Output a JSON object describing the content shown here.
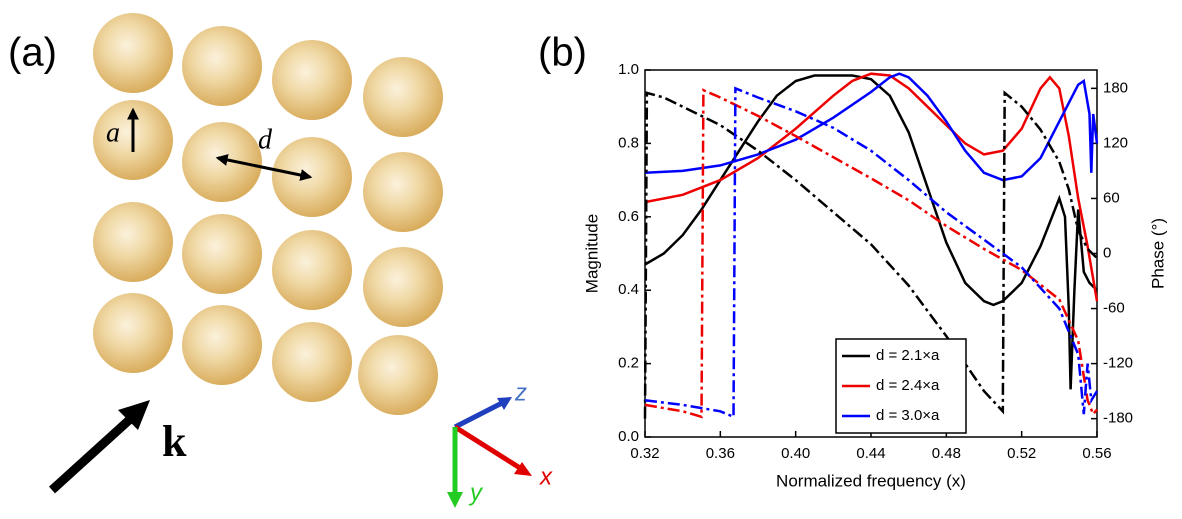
{
  "panel_a": {
    "label": "(a)",
    "radius_label": "a",
    "spacing_label": "d",
    "wave_label": "k",
    "axis_labels": {
      "z": "z",
      "x": "x",
      "y": "y"
    }
  },
  "chart_data": {
    "type": "line",
    "panel_label": "(b)",
    "xlabel": "Normalized frequency (x)",
    "ylabel": "Magnitude",
    "y2label": "Phase (°)",
    "xlim": [
      0.32,
      0.56
    ],
    "xticks": [
      0.32,
      0.36,
      {
        "value": 0.4,
        "label": "0.40"
      },
      0.44,
      0.48,
      0.52,
      0.56
    ],
    "ylim": [
      0,
      1
    ],
    "yticks": [
      {
        "value": 0,
        "label": "0.0"
      },
      0.2,
      0.4,
      0.6,
      0.8,
      {
        "value": 1,
        "label": "1.0"
      }
    ],
    "y2lim": [
      -200,
      200
    ],
    "y2ticks": [
      -180,
      -120,
      -60,
      0,
      60,
      120,
      180
    ],
    "legend": "lower center",
    "series": [
      {
        "name": "d = 2.1×a",
        "color": "#000000",
        "line_style": "solid",
        "x": [
          0.32,
          0.33,
          0.34,
          0.35,
          0.36,
          0.37,
          0.38,
          0.39,
          0.4,
          0.41,
          0.42,
          0.43,
          0.44,
          0.45,
          0.46,
          0.47,
          0.48,
          0.49,
          0.5,
          0.505,
          0.51,
          0.52,
          0.53,
          0.54,
          0.543,
          0.545,
          0.546,
          0.548,
          0.55,
          0.553,
          0.556,
          0.56
        ],
        "values": [
          0.47,
          0.5,
          0.55,
          0.62,
          0.7,
          0.78,
          0.86,
          0.93,
          0.97,
          0.985,
          0.985,
          0.985,
          0.975,
          0.93,
          0.83,
          0.68,
          0.53,
          0.42,
          0.37,
          0.36,
          0.37,
          0.42,
          0.52,
          0.65,
          0.6,
          0.35,
          0.13,
          0.4,
          0.62,
          0.45,
          0.42,
          0.4
        ]
      },
      {
        "name": "d = 2.4×a",
        "color": "#ee0000",
        "line_style": "solid",
        "x": [
          0.32,
          0.34,
          0.36,
          0.38,
          0.4,
          0.42,
          0.43,
          0.44,
          0.45,
          0.46,
          0.47,
          0.48,
          0.49,
          0.5,
          0.51,
          0.52,
          0.53,
          0.535,
          0.54,
          0.545,
          0.55,
          0.555,
          0.56
        ],
        "values": [
          0.64,
          0.66,
          0.7,
          0.76,
          0.84,
          0.93,
          0.97,
          0.99,
          0.985,
          0.95,
          0.9,
          0.85,
          0.8,
          0.77,
          0.78,
          0.84,
          0.95,
          0.98,
          0.95,
          0.82,
          0.65,
          0.52,
          0.37
        ]
      },
      {
        "name": "d = 3.0×a",
        "color": "#0000ff",
        "line_style": "solid",
        "x": [
          0.32,
          0.34,
          0.36,
          0.38,
          0.4,
          0.42,
          0.44,
          0.45,
          0.455,
          0.46,
          0.47,
          0.48,
          0.49,
          0.5,
          0.51,
          0.52,
          0.53,
          0.54,
          0.55,
          0.553,
          0.556,
          0.557,
          0.558,
          0.56
        ],
        "values": [
          0.72,
          0.725,
          0.74,
          0.77,
          0.81,
          0.87,
          0.94,
          0.98,
          0.99,
          0.98,
          0.93,
          0.86,
          0.78,
          0.72,
          0.7,
          0.71,
          0.76,
          0.86,
          0.96,
          0.97,
          0.88,
          0.72,
          0.88,
          0.8
        ]
      },
      {
        "color": "#000000",
        "line_style": "dashdot",
        "axis": "y2",
        "x": [
          0.32,
          0.321,
          0.33,
          0.34,
          0.36,
          0.38,
          0.4,
          0.42,
          0.44,
          0.46,
          0.48,
          0.5,
          0.51,
          0.511,
          0.52,
          0.53,
          0.54,
          0.545,
          0.55,
          0.555,
          0.56
        ],
        "values": [
          -180,
          175,
          170,
          160,
          140,
          112,
          80,
          45,
          10,
          -35,
          -90,
          -150,
          -172,
          175,
          160,
          135,
          100,
          70,
          25,
          5,
          -5
        ]
      },
      {
        "color": "#ee0000",
        "line_style": "dashdot",
        "axis": "y2",
        "x": [
          0.32,
          0.34,
          0.35,
          0.351,
          0.36,
          0.38,
          0.4,
          0.42,
          0.44,
          0.46,
          0.48,
          0.5,
          0.52,
          0.54,
          0.55,
          0.555,
          0.558,
          0.56
        ],
        "values": [
          -165,
          -172,
          -178,
          178,
          170,
          150,
          128,
          105,
          82,
          58,
          30,
          5,
          -18,
          -50,
          -95,
          -160,
          -175,
          -170
        ]
      },
      {
        "color": "#0000ff",
        "line_style": "dashdot",
        "axis": "y2",
        "x": [
          0.32,
          0.34,
          0.36,
          0.367,
          0.368,
          0.38,
          0.4,
          0.42,
          0.44,
          0.46,
          0.48,
          0.5,
          0.52,
          0.54,
          0.55,
          0.553,
          0.555,
          0.557,
          0.56
        ],
        "values": [
          -160,
          -165,
          -172,
          -178,
          180,
          170,
          155,
          137,
          112,
          80,
          45,
          15,
          -15,
          -60,
          -110,
          -175,
          -120,
          -160,
          -150
        ]
      }
    ]
  }
}
